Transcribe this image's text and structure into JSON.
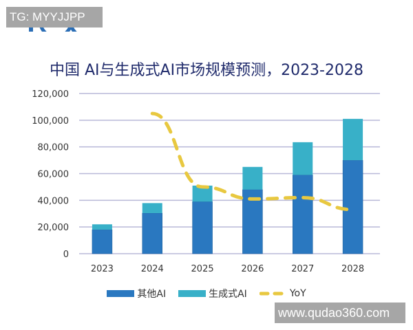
{
  "watermarks": {
    "top_left": "TG: MYYJJPP",
    "bottom_right": "www.qudao360.com"
  },
  "logo": "IDC",
  "colors": {
    "other_ai": "#2a78c0",
    "generative_ai": "#38b0c8",
    "yoy": "#e8c840",
    "grid": "#b8b8d8",
    "title": "#1f2a6b"
  },
  "chart_data": {
    "type": "bar",
    "stacked": true,
    "title": "中国 AI与生成式AI市场规模预测，2023-2028",
    "categories": [
      "2023",
      "2024",
      "2025",
      "2026",
      "2027",
      "2028"
    ],
    "ylim": [
      0,
      120000
    ],
    "yticks": [
      "0",
      "20,000",
      "40,000",
      "60,000",
      "80,000",
      "100,000",
      "120,000"
    ],
    "ytick_values": [
      0,
      20000,
      40000,
      60000,
      80000,
      100000,
      120000
    ],
    "grid": true,
    "legend_placement": "bottom",
    "series": [
      {
        "name": "其他AI",
        "values": [
          18000,
          30400,
          39000,
          48000,
          59000,
          70000
        ]
      },
      {
        "name": "生成式AI",
        "values": [
          4000,
          7500,
          12000,
          17000,
          24500,
          31000
        ]
      },
      {
        "name": "YoY",
        "type": "line",
        "style": "dashed",
        "secondary_axis_unlabeled": true,
        "values": [
          null,
          105000,
          50000,
          41000,
          42000,
          33000
        ]
      }
    ]
  }
}
